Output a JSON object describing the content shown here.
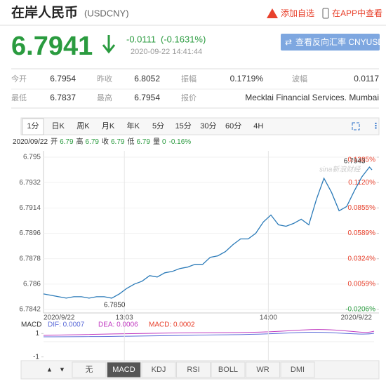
{
  "header": {
    "title": "在岸人民币",
    "code": "(USDCNY)",
    "add_watch": "添加自选",
    "app": "在APP中查看",
    "price": "6.7941",
    "change": "-0.0111",
    "change_pct": "(-0.1631%)",
    "time": "2020-09-22 14:41:44",
    "reverse": "查看反向汇率 CNYUSD"
  },
  "stats": [
    [
      {
        "label": "今开",
        "value": "6.7954"
      },
      {
        "label": "昨收",
        "value": "6.8052"
      },
      {
        "label": "振幅",
        "value": "0.1719%"
      },
      {
        "label": "波幅",
        "value": "0.0117"
      }
    ],
    [
      {
        "label": "最低",
        "value": "6.7837"
      },
      {
        "label": "最高",
        "value": "6.7954"
      },
      {
        "label": "报价",
        "value": "Mecklai Financial Services. Mumbai"
      }
    ]
  ],
  "tabs": [
    "1分",
    "日K",
    "周K",
    "月K",
    "年K",
    "5分",
    "15分",
    "30分",
    "60分",
    "4H"
  ],
  "info": {
    "date": "2020/09/22",
    "items": [
      {
        "label": "开",
        "value": "6.79"
      },
      {
        "label": "高",
        "value": "6.79"
      },
      {
        "label": "收",
        "value": "6.79"
      },
      {
        "label": "低",
        "value": "6.79"
      },
      {
        "label": "量",
        "value": "0"
      }
    ],
    "change": "-0.16%"
  },
  "chart_data": {
    "type": "line",
    "color": "#2a7ab8",
    "watermark": "sina新浪财经",
    "grid": true,
    "x": [
      "12:31",
      "12:34",
      "12:37",
      "12:40",
      "12:43",
      "12:46",
      "12:49",
      "12:52",
      "12:55",
      "12:58",
      "13:01",
      "13:04",
      "13:07",
      "13:10",
      "13:13",
      "13:16",
      "13:19",
      "13:22",
      "13:25",
      "13:28",
      "13:31",
      "13:34",
      "13:37",
      "13:40",
      "13:43",
      "13:46",
      "13:49",
      "13:52",
      "13:55",
      "13:58",
      "14:01",
      "14:04",
      "14:07",
      "14:10",
      "14:13",
      "14:16",
      "14:19",
      "14:22",
      "14:25",
      "14:28",
      "14:31",
      "14:34",
      "14:37",
      "14:40",
      "14:41"
    ],
    "values": [
      6.7853,
      6.7852,
      6.7851,
      6.785,
      6.7851,
      6.7851,
      6.785,
      6.7851,
      6.7851,
      6.785,
      6.7853,
      6.7857,
      6.786,
      6.7862,
      6.7866,
      6.7865,
      6.7868,
      6.7869,
      6.7871,
      6.7872,
      6.7874,
      6.7874,
      6.7879,
      6.788,
      6.7883,
      6.7888,
      6.7892,
      6.7892,
      6.7896,
      6.7904,
      6.7909,
      6.7902,
      6.7901,
      6.7903,
      6.7906,
      6.7902,
      6.792,
      6.7935,
      6.7925,
      6.7912,
      6.7915,
      6.7926,
      6.7936,
      6.7943,
      6.7941
    ],
    "ylim": [
      6.7842,
      6.795
    ],
    "yticks": [
      6.795,
      6.7932,
      6.7914,
      6.7896,
      6.7878,
      6.786,
      6.7842
    ],
    "y2lim": [
      -0.0206,
      0.1385
    ],
    "y2ticks": [
      {
        "value": 0.1385,
        "label": "0.1385%"
      },
      {
        "value": 0.112,
        "label": "0.1120%"
      },
      {
        "value": 0.0855,
        "label": "0.0855%"
      },
      {
        "value": 0.0589,
        "label": "0.0589%"
      },
      {
        "value": 0.0324,
        "label": "0.0324%"
      },
      {
        "value": 0.0059,
        "label": "0.0059%"
      },
      {
        "value": -0.0206,
        "label": "-0.0206%"
      }
    ],
    "xticks": [
      {
        "value": "12:31",
        "label": "2020/9/22"
      },
      "13:03",
      "14:00",
      {
        "value": "14:41",
        "label": "2020/9/22"
      }
    ],
    "annotations": [
      {
        "label": "6.7850",
        "x": "12:58"
      },
      {
        "label": "6.7943",
        "x": "14:40"
      }
    ]
  },
  "macd": {
    "title": "MACD",
    "dif": "DIF: 0.0007",
    "dea": "DEA: 0.0006",
    "macd": "MACD: 0.0002",
    "ylim": [
      -1.2,
      1.2
    ],
    "yticks": [
      1,
      -1
    ]
  },
  "indicator_tabs": [
    "无",
    "MACD",
    "KDJ",
    "RSI",
    "BOLL",
    "WR",
    "DMI"
  ]
}
